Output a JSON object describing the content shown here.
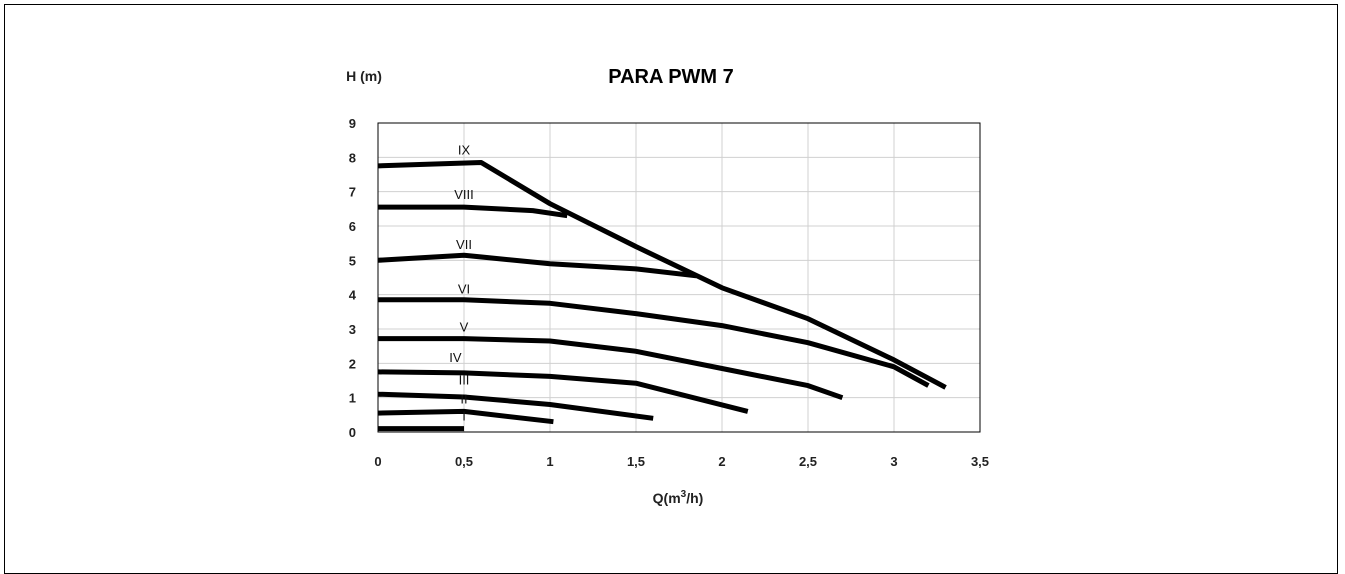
{
  "chart_data": {
    "type": "line",
    "title": "PARA PWM 7",
    "ylabel": "H (m)",
    "xlabel_main": "Q(m",
    "xlabel_sup": "3",
    "xlabel_end": "/h)",
    "xlim": [
      0,
      3.5
    ],
    "ylim": [
      0,
      9
    ],
    "x_ticks": [
      0,
      0.5,
      1,
      1.5,
      2,
      2.5,
      3,
      3.5
    ],
    "x_tick_labels": [
      "0",
      "0,5",
      "1",
      "1,5",
      "2",
      "2,5",
      "3",
      "3,5"
    ],
    "y_ticks": [
      0,
      1,
      2,
      3,
      4,
      5,
      6,
      7,
      8,
      9
    ],
    "y_tick_labels": [
      "0",
      "1",
      "2",
      "3",
      "4",
      "5",
      "6",
      "7",
      "8",
      "9"
    ],
    "grid": true,
    "line_color": "#000000",
    "grid_color": "#d0d0d0",
    "series": [
      {
        "name": "I",
        "label_at": [
          0.5,
          0.1
        ],
        "points": [
          [
            0,
            0.1
          ],
          [
            0.5,
            0.1
          ]
        ]
      },
      {
        "name": "II",
        "label_at": [
          0.5,
          0.6
        ],
        "points": [
          [
            0,
            0.55
          ],
          [
            0.5,
            0.6
          ],
          [
            1.02,
            0.3
          ]
        ]
      },
      {
        "name": "III",
        "label_at": [
          0.5,
          1.15
        ],
        "points": [
          [
            0,
            1.1
          ],
          [
            0.5,
            1.02
          ],
          [
            1.0,
            0.8
          ],
          [
            1.6,
            0.4
          ]
        ]
      },
      {
        "name": "IV",
        "label_at": [
          0.45,
          1.8
        ],
        "points": [
          [
            0,
            1.75
          ],
          [
            0.5,
            1.72
          ],
          [
            1.0,
            1.62
          ],
          [
            1.5,
            1.42
          ],
          [
            2.15,
            0.6
          ]
        ]
      },
      {
        "name": "V",
        "label_at": [
          0.5,
          2.7
        ],
        "points": [
          [
            0,
            2.72
          ],
          [
            0.5,
            2.72
          ],
          [
            1.0,
            2.65
          ],
          [
            1.5,
            2.35
          ],
          [
            2.0,
            1.85
          ],
          [
            2.5,
            1.35
          ],
          [
            2.7,
            1.0
          ]
        ]
      },
      {
        "name": "VI",
        "label_at": [
          0.5,
          3.8
        ],
        "points": [
          [
            0,
            3.85
          ],
          [
            0.5,
            3.85
          ],
          [
            1.0,
            3.75
          ],
          [
            1.5,
            3.45
          ],
          [
            2.0,
            3.1
          ],
          [
            2.5,
            2.6
          ],
          [
            3.0,
            1.9
          ],
          [
            3.2,
            1.35
          ]
        ]
      },
      {
        "name": "VII",
        "label_at": [
          0.5,
          5.1
        ],
        "points": [
          [
            0,
            5.0
          ],
          [
            0.5,
            5.15
          ],
          [
            1.0,
            4.9
          ],
          [
            1.5,
            4.75
          ],
          [
            1.85,
            4.55
          ]
        ]
      },
      {
        "name": "VIII",
        "label_at": [
          0.5,
          6.55
        ],
        "points": [
          [
            0,
            6.55
          ],
          [
            0.5,
            6.55
          ],
          [
            0.9,
            6.45
          ],
          [
            1.1,
            6.3
          ]
        ]
      },
      {
        "name": "IX",
        "label_at": [
          0.5,
          7.85
        ],
        "points": [
          [
            0,
            7.75
          ],
          [
            0.6,
            7.85
          ],
          [
            1.0,
            6.65
          ],
          [
            1.5,
            5.4
          ],
          [
            2.0,
            4.2
          ],
          [
            2.5,
            3.3
          ],
          [
            3.0,
            2.1
          ],
          [
            3.3,
            1.3
          ]
        ]
      }
    ]
  }
}
